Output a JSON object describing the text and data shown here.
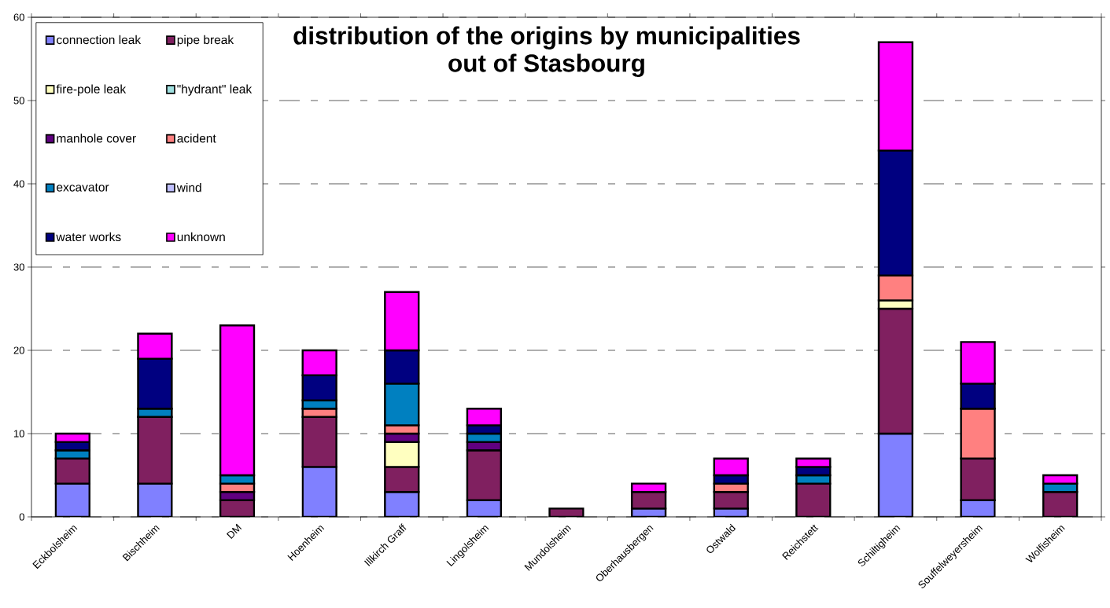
{
  "chart_data": {
    "type": "bar",
    "stacked": true,
    "title": "distribution of the origins by municipalities out of Stasbourg",
    "categories": [
      "Eckbolsheim",
      "Bischheim",
      "DM",
      "Hoenheim",
      "Illkirch Graff",
      "Lingolsheim",
      "Mundolsheim",
      "Oberhausbergen",
      "Ostwald",
      "Reichstett",
      "Schiltigheim",
      "Souffelweyersheim",
      "Wolfisheim"
    ],
    "series": [
      {
        "name": "connection leak",
        "color": "#8080ff",
        "values": [
          4,
          4,
          0,
          6,
          3,
          2,
          0,
          1,
          1,
          0,
          10,
          2,
          0
        ]
      },
      {
        "name": "pipe break",
        "color": "#802060",
        "values": [
          3,
          8,
          2,
          6,
          3,
          6,
          1,
          2,
          2,
          4,
          15,
          5,
          3
        ]
      },
      {
        "name": "fire-pole leak",
        "color": "#ffffc0",
        "values": [
          0,
          0,
          0,
          0,
          3,
          0,
          0,
          0,
          0,
          0,
          1,
          0,
          0
        ]
      },
      {
        "name": "\"hydrant\" leak",
        "color": "#a0e0e0",
        "values": [
          0,
          0,
          0,
          0,
          0,
          0,
          0,
          0,
          0,
          0,
          0,
          0,
          0
        ]
      },
      {
        "name": "manhole cover",
        "color": "#600080",
        "values": [
          0,
          0,
          1,
          0,
          1,
          1,
          0,
          0,
          0,
          0,
          0,
          0,
          0
        ]
      },
      {
        "name": "acident",
        "color": "#ff8080",
        "values": [
          0,
          0,
          1,
          1,
          1,
          0,
          0,
          0,
          1,
          0,
          3,
          6,
          0
        ]
      },
      {
        "name": "excavator",
        "color": "#0080c0",
        "values": [
          1,
          1,
          1,
          1,
          5,
          1,
          0,
          0,
          0,
          1,
          0,
          0,
          1
        ]
      },
      {
        "name": "wind",
        "color": "#c0c0ff",
        "values": [
          0,
          0,
          0,
          0,
          0,
          0,
          0,
          0,
          0,
          0,
          0,
          0,
          0
        ]
      },
      {
        "name": "water works",
        "color": "#000080",
        "values": [
          1,
          6,
          0,
          3,
          4,
          1,
          0,
          0,
          1,
          1,
          15,
          3,
          0
        ]
      },
      {
        "name": "unknown",
        "color": "#ff00ff",
        "values": [
          1,
          3,
          18,
          3,
          7,
          2,
          0,
          1,
          2,
          1,
          13,
          5,
          1
        ]
      }
    ],
    "ylim": [
      0,
      60
    ],
    "yticks": [
      0,
      10,
      20,
      30,
      40,
      50,
      60
    ],
    "grid": "y",
    "legend": "top left"
  }
}
